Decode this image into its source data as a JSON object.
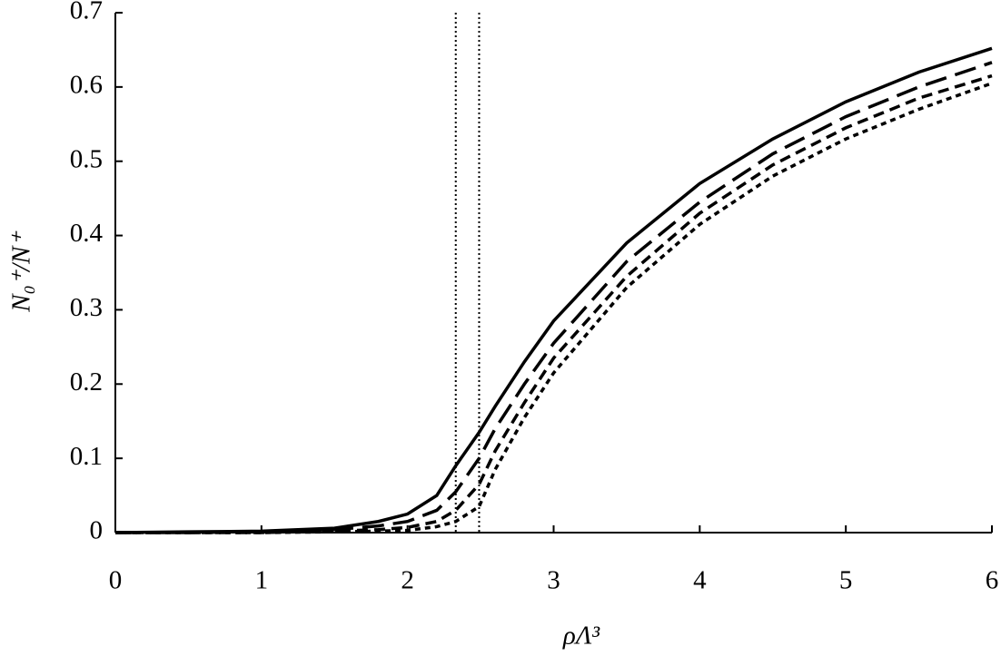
{
  "chart_data": {
    "type": "line",
    "x_label": "ρΛ³",
    "y_label": "N₀⁺/N⁺",
    "x": [
      0,
      0.5,
      1,
      1.5,
      1.8,
      2,
      2.2,
      2.33,
      2.49,
      2.6,
      2.8,
      3,
      3.5,
      4,
      4.5,
      5,
      5.5,
      6
    ],
    "series": [
      {
        "color": "#000000",
        "dash": "solid",
        "values": [
          0,
          0.001,
          0.002,
          0.006,
          0.015,
          0.025,
          0.05,
          0.09,
          0.135,
          0.17,
          0.23,
          0.285,
          0.39,
          0.47,
          0.53,
          0.58,
          0.62,
          0.652
        ]
      },
      {
        "color": "#000000",
        "dash": "long",
        "values": [
          0,
          0,
          0.001,
          0.004,
          0.009,
          0.015,
          0.03,
          0.055,
          0.1,
          0.14,
          0.2,
          0.255,
          0.365,
          0.445,
          0.51,
          0.56,
          0.6,
          0.633
        ]
      },
      {
        "color": "#000000",
        "dash": "medium",
        "values": [
          0,
          0,
          0,
          0.002,
          0.004,
          0.007,
          0.015,
          0.03,
          0.065,
          0.11,
          0.175,
          0.235,
          0.345,
          0.43,
          0.495,
          0.545,
          0.585,
          0.615
        ]
      },
      {
        "color": "#000000",
        "dash": "short",
        "values": [
          0,
          0,
          0,
          0.001,
          0.002,
          0.003,
          0.008,
          0.015,
          0.035,
          0.085,
          0.155,
          0.215,
          0.33,
          0.415,
          0.48,
          0.53,
          0.57,
          0.605
        ]
      }
    ],
    "vlines": [
      2.33,
      2.49
    ],
    "xlim": [
      0,
      6
    ],
    "xticks": [
      0,
      1,
      2,
      3,
      4,
      5,
      6
    ],
    "ylim": [
      0,
      0.7
    ],
    "yticks": [
      0,
      0.1,
      0.2,
      0.3,
      0.4,
      0.5,
      0.6,
      0.7
    ],
    "grid": false
  }
}
